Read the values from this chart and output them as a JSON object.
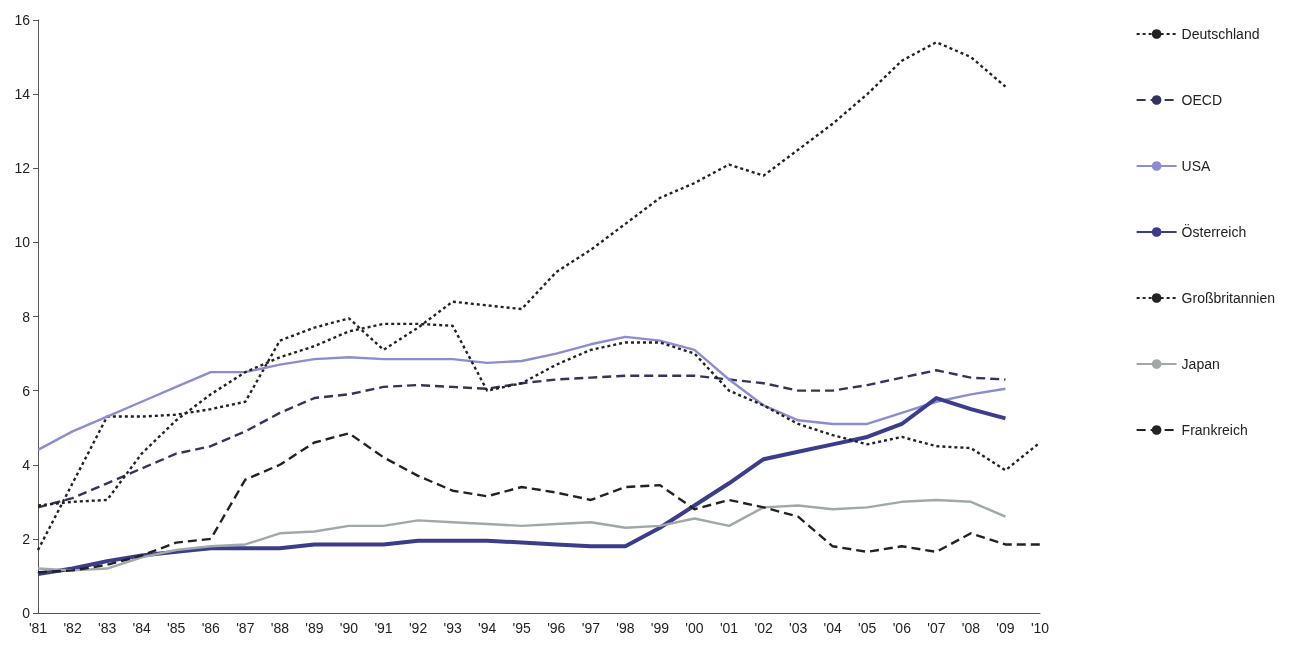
{
  "chart_data": {
    "type": "line",
    "categories": [
      "'81",
      "'82",
      "'83",
      "'84",
      "'85",
      "'86",
      "'87",
      "'88",
      "'89",
      "'90",
      "'91",
      "'92",
      "'93",
      "'94",
      "'95",
      "'96",
      "'97",
      "'98",
      "'99",
      "'00",
      "'01",
      "'02",
      "'03",
      "'04",
      "'05",
      "'06",
      "'07",
      "'08",
      "'09",
      "'10"
    ],
    "ylim": [
      0,
      16
    ],
    "yticks": [
      0,
      2,
      4,
      6,
      8,
      10,
      12,
      14,
      16
    ],
    "grid": false,
    "legend": "right",
    "marker": "none",
    "series": [
      {
        "name": "Deutschland",
        "color": "#222222",
        "line_style": "dotted",
        "values": [
          1.7,
          3.5,
          5.3,
          5.3,
          5.35,
          5.5,
          5.7,
          7.35,
          7.7,
          7.95,
          7.1,
          7.7,
          8.4,
          8.3,
          8.2,
          9.2,
          9.8,
          10.5,
          11.2,
          11.6,
          12.1,
          11.8,
          12.5,
          13.2,
          14.0,
          14.9,
          15.4,
          15.0,
          14.2,
          null
        ]
      },
      {
        "name": "OECD",
        "color": "#33335e",
        "line_style": "dashed",
        "values": [
          2.85,
          3.1,
          3.5,
          3.9,
          4.3,
          4.5,
          4.9,
          5.4,
          5.8,
          5.9,
          6.1,
          6.15,
          6.1,
          6.05,
          6.2,
          6.3,
          6.35,
          6.4,
          6.4,
          6.4,
          6.3,
          6.2,
          6.0,
          6.0,
          6.15,
          6.35,
          6.55,
          6.35,
          6.3,
          null
        ]
      },
      {
        "name": "USA",
        "color": "#8c8cd0",
        "line_style": "solid",
        "values": [
          4.4,
          4.9,
          5.3,
          5.7,
          6.1,
          6.5,
          6.5,
          6.7,
          6.85,
          6.9,
          6.85,
          6.85,
          6.85,
          6.75,
          6.8,
          7.0,
          7.25,
          7.45,
          7.35,
          7.1,
          6.3,
          5.6,
          5.2,
          5.1,
          5.1,
          5.4,
          5.7,
          5.9,
          6.05,
          null
        ]
      },
      {
        "name": "Österreich",
        "color": "#3c3c8c",
        "line_style": "solid",
        "values": [
          1.05,
          1.2,
          1.4,
          1.55,
          1.65,
          1.75,
          1.75,
          1.75,
          1.85,
          1.85,
          1.85,
          1.95,
          1.95,
          1.95,
          1.9,
          1.85,
          1.8,
          1.8,
          2.3,
          2.9,
          3.5,
          4.15,
          4.35,
          4.55,
          4.75,
          5.1,
          5.8,
          5.5,
          5.25,
          null
        ]
      },
      {
        "name": "Großbritannien",
        "color": "#222222",
        "line_style": "dotted",
        "values": [
          2.9,
          3.0,
          3.05,
          4.3,
          5.2,
          5.9,
          6.5,
          6.9,
          7.2,
          7.6,
          7.8,
          7.8,
          7.75,
          6.0,
          6.2,
          6.7,
          7.1,
          7.3,
          7.3,
          7.0,
          6.0,
          5.6,
          5.1,
          4.8,
          4.55,
          4.75,
          4.5,
          4.45,
          3.85,
          4.6
        ]
      },
      {
        "name": "Japan",
        "color": "#a0a8a8",
        "line_style": "solid",
        "values": [
          1.2,
          1.15,
          1.2,
          1.5,
          1.7,
          1.8,
          1.85,
          2.15,
          2.2,
          2.35,
          2.35,
          2.5,
          2.45,
          2.4,
          2.35,
          2.4,
          2.45,
          2.3,
          2.35,
          2.55,
          2.35,
          2.85,
          2.9,
          2.8,
          2.85,
          3.0,
          3.05,
          3.0,
          2.6,
          null
        ]
      },
      {
        "name": "Frankreich",
        "color": "#222222",
        "line_style": "dashed",
        "values": [
          1.1,
          1.15,
          1.3,
          1.55,
          1.9,
          2.0,
          3.6,
          4.0,
          4.6,
          4.85,
          4.2,
          3.7,
          3.3,
          3.15,
          3.4,
          3.25,
          3.05,
          3.4,
          3.45,
          2.8,
          3.05,
          2.85,
          2.6,
          1.8,
          1.65,
          1.8,
          1.65,
          2.15,
          1.85,
          1.85
        ]
      }
    ]
  }
}
